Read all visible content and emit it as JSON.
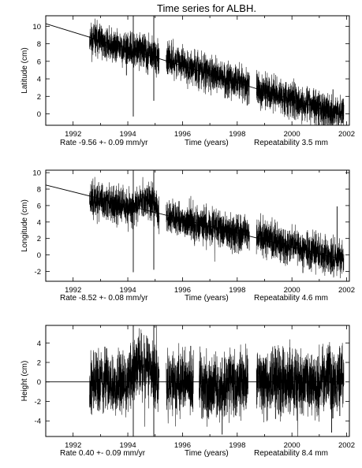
{
  "title": "Time series for ALBH.",
  "chart_data": [
    {
      "type": "line",
      "ylabel": "Latitude (cm)",
      "xlabel": "Time (years)",
      "xlim": [
        1991.0,
        2002.1
      ],
      "ylim": [
        -1.3,
        11.2
      ],
      "xticks": [
        1992,
        1994,
        1996,
        1998,
        2000,
        2002
      ],
      "yticks": [
        0,
        2,
        4,
        6,
        8,
        10
      ],
      "rate_label": "Rate  -9.56 +- 0.09 mm/yr",
      "repeatability_label": "Repeatability 3.5 mm",
      "trend": {
        "x": [
          1991.0,
          2001.9
        ],
        "y": [
          10.3,
          -0.2
        ]
      },
      "series": [
        {
          "values": [
            [
              1992.6,
              8.6
            ],
            [
              1992.8,
              8.4
            ],
            [
              1993.0,
              8.3
            ],
            [
              1993.2,
              8.0
            ],
            [
              1993.4,
              7.8
            ],
            [
              1993.6,
              7.7
            ],
            [
              1993.8,
              7.4
            ],
            [
              1994.0,
              7.4
            ],
            [
              1994.2,
              7.0
            ],
            [
              1994.4,
              7.3
            ],
            [
              1994.6,
              7.1
            ],
            [
              1994.8,
              6.9
            ],
            [
              1995.0,
              6.6
            ],
            [
              1995.15,
              6.5
            ],
            [
              1995.4,
              6.3
            ],
            [
              1995.6,
              6.1
            ],
            [
              1995.8,
              6.0
            ],
            [
              1996.0,
              5.6
            ],
            [
              1996.2,
              5.4
            ],
            [
              1996.4,
              5.3
            ],
            [
              1996.6,
              5.1
            ],
            [
              1996.8,
              4.9
            ],
            [
              1997.0,
              4.6
            ],
            [
              1997.2,
              4.5
            ],
            [
              1997.4,
              4.3
            ],
            [
              1997.6,
              4.0
            ],
            [
              1997.8,
              3.9
            ],
            [
              1998.0,
              3.6
            ],
            [
              1998.2,
              3.4
            ],
            [
              1998.45,
              3.1
            ],
            [
              1998.7,
              2.8
            ],
            [
              1998.9,
              2.7
            ],
            [
              1999.1,
              2.4
            ],
            [
              1999.3,
              2.3
            ],
            [
              1999.5,
              2.1
            ],
            [
              1999.7,
              1.9
            ],
            [
              1999.9,
              1.6
            ],
            [
              2000.1,
              1.5
            ],
            [
              2000.3,
              1.3
            ],
            [
              2000.5,
              1.1
            ],
            [
              2000.7,
              0.9
            ],
            [
              2000.9,
              0.7
            ],
            [
              2001.1,
              0.5
            ],
            [
              2001.3,
              0.4
            ],
            [
              2001.5,
              0.1
            ],
            [
              2001.7,
              0.0
            ],
            [
              2001.9,
              -0.3
            ]
          ]
        }
      ],
      "gaps": [
        [
          1995.15,
          1995.4
        ],
        [
          1998.45,
          1998.7
        ]
      ],
      "spikes": [
        {
          "x": 1994.2,
          "y": [
            -0.3,
            11.2
          ]
        },
        {
          "x": 1994.95,
          "y": [
            1.5,
            11.2
          ]
        },
        {
          "x": 1993.95,
          "y": [
            4.4,
            7.8
          ]
        },
        {
          "x": 1997.55,
          "y": [
            1.8,
            4.0
          ]
        },
        {
          "x": 2000.15,
          "y": [
            0.5,
            1.5
          ]
        },
        {
          "x": 2001.5,
          "y": [
            -0.2,
            2.8
          ]
        }
      ]
    },
    {
      "type": "line",
      "ylabel": "Longitude (cm)",
      "xlabel": "Time (years)",
      "xlim": [
        1991.0,
        2002.1
      ],
      "ylim": [
        -3.2,
        10.3
      ],
      "xticks": [
        1992,
        1994,
        1996,
        1998,
        2000,
        2002
      ],
      "yticks": [
        -2,
        0,
        2,
        4,
        6,
        8,
        10
      ],
      "rate_label": "Rate  -8.52 +- 0.08 mm/yr",
      "repeatability_label": "Repeatability 4.6 mm",
      "trend": {
        "x": [
          1991.0,
          2001.9
        ],
        "y": [
          8.5,
          -0.6
        ]
      },
      "series": [
        {
          "values": [
            [
              1992.6,
              6.9
            ],
            [
              1992.8,
              6.6
            ],
            [
              1993.0,
              6.6
            ],
            [
              1993.2,
              6.3
            ],
            [
              1993.4,
              6.2
            ],
            [
              1993.6,
              6.0
            ],
            [
              1993.8,
              5.9
            ],
            [
              1994.0,
              5.6
            ],
            [
              1994.2,
              5.8
            ],
            [
              1994.4,
              6.6
            ],
            [
              1994.6,
              6.8
            ],
            [
              1994.8,
              6.5
            ],
            [
              1995.0,
              5.9
            ],
            [
              1995.15,
              5.0
            ],
            [
              1995.4,
              4.7
            ],
            [
              1995.6,
              4.5
            ],
            [
              1995.8,
              4.4
            ],
            [
              1996.0,
              4.2
            ],
            [
              1996.2,
              4.1
            ],
            [
              1996.4,
              3.9
            ],
            [
              1996.6,
              3.8
            ],
            [
              1996.8,
              3.6
            ],
            [
              1997.0,
              3.5
            ],
            [
              1997.2,
              3.3
            ],
            [
              1997.4,
              3.2
            ],
            [
              1997.6,
              3.0
            ],
            [
              1997.8,
              2.9
            ],
            [
              1998.0,
              2.7
            ],
            [
              1998.2,
              2.6
            ],
            [
              1998.45,
              2.4
            ],
            [
              1998.7,
              2.4
            ],
            [
              1998.9,
              2.3
            ],
            [
              1999.1,
              2.1
            ],
            [
              1999.3,
              1.8
            ],
            [
              1999.5,
              1.6
            ],
            [
              1999.7,
              1.3
            ],
            [
              1999.9,
              1.2
            ],
            [
              2000.1,
              1.0
            ],
            [
              2000.3,
              0.8
            ],
            [
              2000.5,
              0.6
            ],
            [
              2000.7,
              0.4
            ],
            [
              2000.9,
              0.3
            ],
            [
              2001.1,
              0.1
            ],
            [
              2001.3,
              -0.1
            ],
            [
              2001.5,
              -0.3
            ],
            [
              2001.7,
              -0.4
            ],
            [
              2001.9,
              -0.6
            ]
          ]
        }
      ],
      "gaps": [
        [
          1995.15,
          1995.4
        ],
        [
          1998.45,
          1998.7
        ]
      ],
      "spikes": [
        {
          "x": 1994.2,
          "y": [
            -2.1,
            10.3
          ]
        },
        {
          "x": 1994.95,
          "y": [
            -1.8,
            10.3
          ]
        },
        {
          "x": 2000.4,
          "y": [
            -2.2,
            0.9
          ]
        },
        {
          "x": 2001.65,
          "y": [
            -0.8,
            5.9
          ]
        },
        {
          "x": 1999.7,
          "y": [
            -1.0,
            1.5
          ]
        }
      ]
    },
    {
      "type": "line",
      "ylabel": "Height (cm)",
      "xlabel": "Time (years)",
      "xlim": [
        1991.0,
        2002.1
      ],
      "ylim": [
        -5.6,
        5.8
      ],
      "xticks": [
        1992,
        1994,
        1996,
        1998,
        2000,
        2002
      ],
      "yticks": [
        -4,
        -2,
        0,
        2,
        4
      ],
      "rate_label": "Rate   0.40 +- 0.09 mm/yr",
      "repeatability_label": "Repeatability 8.4 mm",
      "trend": {
        "x": [
          1991.0,
          2001.9
        ],
        "y": [
          0.0,
          0.0
        ]
      },
      "series": [
        {
          "values": [
            [
              1992.6,
              0.1
            ],
            [
              1992.8,
              -0.2
            ],
            [
              1993.0,
              0.0
            ],
            [
              1993.2,
              0.3
            ],
            [
              1993.4,
              -0.1
            ],
            [
              1993.6,
              0.1
            ],
            [
              1993.8,
              -0.3
            ],
            [
              1994.0,
              0.2
            ],
            [
              1994.2,
              1.2
            ],
            [
              1994.4,
              2.0
            ],
            [
              1994.6,
              1.8
            ],
            [
              1994.8,
              1.5
            ],
            [
              1995.0,
              0.4
            ],
            [
              1995.15,
              0.0
            ],
            [
              1995.4,
              -0.1
            ],
            [
              1995.6,
              0.3
            ],
            [
              1995.8,
              -0.6
            ],
            [
              1996.0,
              0.1
            ],
            [
              1996.2,
              -0.2
            ],
            [
              1996.4,
              -0.4
            ],
            [
              1996.6,
              0.2
            ],
            [
              1996.8,
              -0.5
            ],
            [
              1997.0,
              -0.8
            ],
            [
              1997.2,
              -0.3
            ],
            [
              1997.4,
              -1.0
            ],
            [
              1997.6,
              -0.2
            ],
            [
              1997.8,
              0.1
            ],
            [
              1998.0,
              -0.5
            ],
            [
              1998.2,
              0.0
            ],
            [
              1998.4,
              0.4
            ],
            [
              1998.7,
              0.3
            ],
            [
              1998.9,
              0.0
            ],
            [
              1999.1,
              -0.3
            ],
            [
              1999.3,
              0.5
            ],
            [
              1999.5,
              0.1
            ],
            [
              1999.7,
              -0.4
            ],
            [
              1999.9,
              0.2
            ],
            [
              2000.1,
              0.0
            ],
            [
              2000.3,
              -0.2
            ],
            [
              2000.5,
              0.3
            ],
            [
              2000.7,
              0.0
            ],
            [
              2000.9,
              -0.5
            ],
            [
              2001.1,
              0.2
            ],
            [
              2001.3,
              0.4
            ],
            [
              2001.5,
              -0.1
            ],
            [
              2001.7,
              0.3
            ],
            [
              2001.9,
              0.5
            ]
          ]
        }
      ],
      "gaps": [
        [
          1995.15,
          1995.4
        ],
        [
          1996.4,
          1996.6
        ],
        [
          1998.4,
          1998.7
        ]
      ],
      "spikes": [
        {
          "x": 1994.2,
          "y": [
            -5.6,
            5.8
          ]
        },
        {
          "x": 1994.95,
          "y": [
            -5.6,
            5.8
          ]
        },
        {
          "x": 1997.45,
          "y": [
            -5.4,
            2.5
          ]
        },
        {
          "x": 2001.45,
          "y": [
            -5.2,
            1.8
          ]
        },
        {
          "x": 1999.4,
          "y": [
            -3.8,
            3.4
          ]
        },
        {
          "x": 2001.75,
          "y": [
            -3.5,
            3.5
          ]
        },
        {
          "x": 1996.3,
          "y": [
            -2.5,
            3.7
          ]
        }
      ]
    }
  ]
}
